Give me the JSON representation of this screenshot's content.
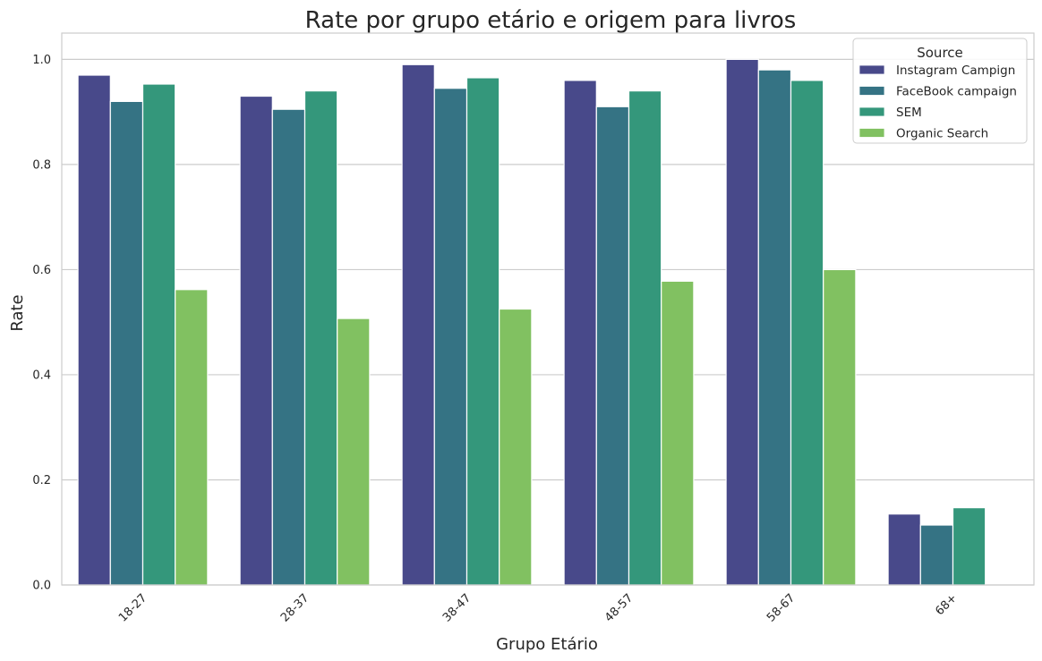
{
  "chart_data": {
    "type": "bar",
    "title": "Rate por grupo etário e origem para livros",
    "xlabel": "Grupo Etário",
    "ylabel": "Rate",
    "categories": [
      "18-27",
      "28-37",
      "38-47",
      "48-57",
      "58-67",
      "68+"
    ],
    "series": [
      {
        "name": "Instagram Campign",
        "color": "#48498a",
        "values": [
          0.97,
          0.93,
          0.99,
          0.96,
          1.0,
          0.135
        ]
      },
      {
        "name": "FaceBook campaign",
        "color": "#357384",
        "values": [
          0.92,
          0.905,
          0.945,
          0.91,
          0.98,
          0.114
        ]
      },
      {
        "name": "SEM",
        "color": "#34977b",
        "values": [
          0.953,
          0.94,
          0.965,
          0.94,
          0.96,
          0.147
        ]
      },
      {
        "name": "Organic Search",
        "color": "#81c161",
        "values": [
          0.562,
          0.507,
          0.525,
          0.578,
          0.6,
          null
        ]
      }
    ],
    "ylim": [
      0,
      1.05
    ],
    "yticks": [
      "0.0",
      "0.2",
      "0.4",
      "0.6",
      "0.8",
      "1.0"
    ],
    "grid": "horizontal",
    "legend": {
      "title": "Source",
      "placement": "top-right"
    }
  }
}
